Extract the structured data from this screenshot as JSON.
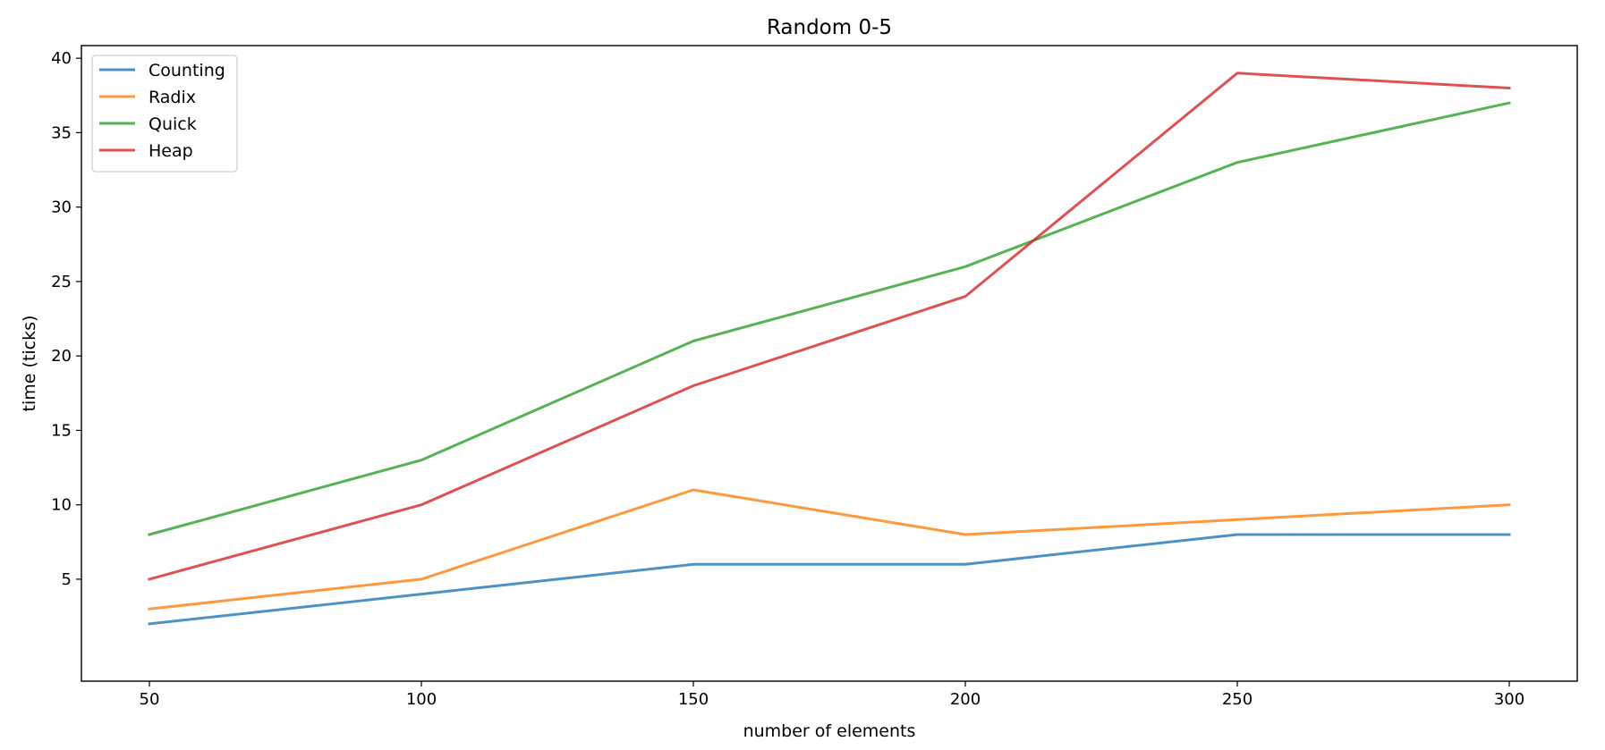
{
  "chart_data": {
    "type": "line",
    "title": "Random 0-5",
    "xlabel": "number of elements",
    "ylabel": "time (ticks)",
    "x": [
      50,
      100,
      150,
      200,
      250,
      300
    ],
    "xticks": [
      50,
      100,
      150,
      200,
      250,
      300
    ],
    "yticks": [
      5,
      10,
      15,
      20,
      25,
      30,
      35,
      40
    ],
    "xlim": [
      37.5,
      312.5
    ],
    "ylim": [
      -1.85,
      40.85
    ],
    "grid": false,
    "legend_position": "top-left",
    "series": [
      {
        "name": "Counting",
        "color": "#1f77b4",
        "values": [
          2,
          4,
          6,
          6,
          8,
          8
        ]
      },
      {
        "name": "Radix",
        "color": "#ff7f0e",
        "values": [
          3,
          5,
          11,
          8,
          9,
          10
        ]
      },
      {
        "name": "Quick",
        "color": "#2ca02c",
        "values": [
          8,
          13,
          21,
          26,
          33,
          37
        ]
      },
      {
        "name": "Heap",
        "color": "#d62728",
        "values": [
          5,
          10,
          18,
          24,
          39,
          38
        ]
      }
    ]
  }
}
